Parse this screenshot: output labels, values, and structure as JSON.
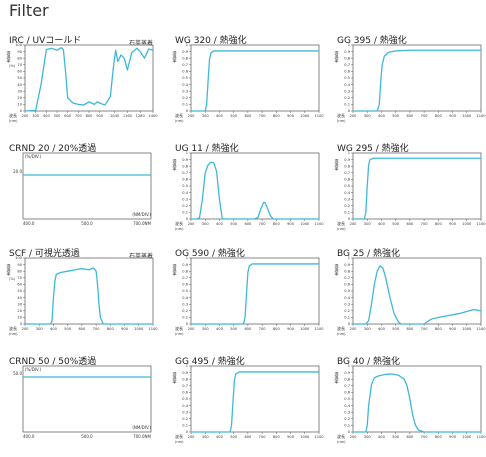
{
  "page": {
    "title": "Filter"
  },
  "colors": {
    "curve": "#3fb8d8",
    "axis": "#555555",
    "text": "#333333"
  },
  "chart_data": [
    {
      "type": "line",
      "title": "IRC / UVコールド",
      "note": "石英蒸着",
      "xlabel": "波長",
      "xunit": "(nm)",
      "ylabel": "透過率",
      "yunit": "(%)",
      "xlim": [
        200,
        1400
      ],
      "ylim": [
        0,
        100
      ],
      "xticks": [
        200,
        300,
        400,
        500,
        600,
        700,
        800,
        900,
        1040,
        1160,
        1280,
        1400
      ],
      "yticks": [
        0,
        10,
        20,
        30,
        40,
        50,
        60,
        70,
        80,
        90,
        100
      ],
      "grid": false,
      "series": [
        {
          "x": [
            200,
            300,
            350,
            400,
            450,
            500,
            540,
            560,
            580,
            600,
            650,
            700,
            750,
            800,
            850,
            880,
            900,
            950,
            1000,
            1030,
            1050,
            1070,
            1100,
            1130,
            1160,
            1200,
            1250,
            1280,
            1320,
            1360,
            1400
          ],
          "y": [
            0,
            1,
            40,
            93,
            95,
            92,
            96,
            93,
            60,
            20,
            12,
            10,
            9,
            14,
            10,
            14,
            12,
            9,
            22,
            68,
            92,
            75,
            85,
            80,
            62,
            88,
            95,
            90,
            80,
            94,
            92
          ]
        }
      ]
    },
    {
      "type": "line",
      "title": "WG 320 / 熱強化",
      "xlabel": "波長",
      "xunit": "(nm)",
      "ylabel": "透過率",
      "yunit": "",
      "xlim": [
        200,
        1100
      ],
      "ylim": [
        0,
        1.0
      ],
      "xticks": [
        200,
        300,
        400,
        500,
        600,
        700,
        800,
        900,
        1000,
        1100
      ],
      "yticks": [
        0,
        0.1,
        0.2,
        0.3,
        0.4,
        0.5,
        0.6,
        0.7,
        0.8,
        0.9,
        1.0
      ],
      "grid": false,
      "series": [
        {
          "x": [
            200,
            300,
            310,
            320,
            330,
            340,
            360,
            400,
            500,
            700,
            900,
            1100
          ],
          "y": [
            0,
            0,
            0.1,
            0.45,
            0.78,
            0.88,
            0.91,
            0.91,
            0.91,
            0.91,
            0.91,
            0.91
          ]
        }
      ]
    },
    {
      "type": "line",
      "title": "GG 395 / 熱強化",
      "xlabel": "波長",
      "xunit": "(nm)",
      "ylabel": "透過率",
      "yunit": "",
      "xlim": [
        200,
        1100
      ],
      "ylim": [
        0,
        1.0
      ],
      "xticks": [
        200,
        300,
        400,
        500,
        600,
        700,
        800,
        900,
        1000,
        1100
      ],
      "yticks": [
        0,
        0.1,
        0.2,
        0.3,
        0.4,
        0.5,
        0.6,
        0.7,
        0.8,
        0.9,
        1.0
      ],
      "grid": false,
      "series": [
        {
          "x": [
            200,
            370,
            385,
            395,
            405,
            420,
            450,
            500,
            600,
            800,
            1000,
            1100
          ],
          "y": [
            0,
            0,
            0.1,
            0.45,
            0.7,
            0.83,
            0.89,
            0.91,
            0.92,
            0.92,
            0.92,
            0.92
          ]
        }
      ]
    },
    {
      "type": "line",
      "title": "CRND 20 / 20%透過",
      "xlabel": "(NM/DIV.)",
      "ylabel": "(%/DIV.)",
      "xlim": [
        400,
        700
      ],
      "ylim": [
        0,
        30
      ],
      "xticklabels": [
        "400.0",
        "500.0",
        "700.0NM"
      ],
      "yticklabels": [
        "20.0"
      ],
      "grid": false,
      "series": [
        {
          "x": [
            400,
            500,
            600,
            700
          ],
          "y": [
            20,
            20,
            20,
            20
          ]
        }
      ]
    },
    {
      "type": "line",
      "title": "UG 11 / 熱強化",
      "xlabel": "波長",
      "xunit": "(nm)",
      "ylabel": "透過率",
      "yunit": "",
      "xlim": [
        200,
        1100
      ],
      "ylim": [
        0,
        1.0
      ],
      "xticks": [
        200,
        300,
        400,
        500,
        600,
        700,
        800,
        900,
        1000,
        1100
      ],
      "yticks": [
        0,
        0.1,
        0.2,
        0.3,
        0.4,
        0.5,
        0.6,
        0.7,
        0.8,
        0.9,
        1.0
      ],
      "grid": false,
      "series": [
        {
          "x": [
            200,
            240,
            260,
            280,
            300,
            320,
            340,
            360,
            380,
            400,
            420,
            640,
            670,
            690,
            710,
            720,
            740,
            760,
            780,
            800,
            1100
          ],
          "y": [
            0,
            0,
            0.02,
            0.3,
            0.7,
            0.82,
            0.86,
            0.85,
            0.72,
            0.3,
            0,
            0,
            0.02,
            0.15,
            0.25,
            0.25,
            0.15,
            0.04,
            0,
            0,
            0
          ]
        }
      ]
    },
    {
      "type": "line",
      "title": "WG 295 / 熱強化",
      "xlabel": "波長",
      "xunit": "(nm)",
      "ylabel": "透過率",
      "yunit": "",
      "xlim": [
        200,
        1100
      ],
      "ylim": [
        0,
        1.0
      ],
      "xticks": [
        200,
        300,
        400,
        500,
        600,
        700,
        800,
        900,
        1000,
        1100
      ],
      "yticks": [
        0,
        0.1,
        0.2,
        0.3,
        0.4,
        0.5,
        0.6,
        0.7,
        0.8,
        0.9,
        1.0
      ],
      "grid": false,
      "series": [
        {
          "x": [
            200,
            280,
            290,
            300,
            310,
            320,
            340,
            400,
            600,
            800,
            1100
          ],
          "y": [
            0,
            0,
            0.1,
            0.5,
            0.82,
            0.9,
            0.92,
            0.92,
            0.92,
            0.92,
            0.92
          ]
        }
      ]
    },
    {
      "type": "line",
      "title": "SCF / 可視光透過",
      "note": "石英蒸着",
      "xlabel": "波長",
      "xunit": "(nm)",
      "ylabel": "透過率",
      "yunit": "(%)",
      "xlim": [
        200,
        1100
      ],
      "ylim": [
        0,
        100
      ],
      "xticks": [
        200,
        300,
        400,
        500,
        600,
        700,
        800,
        900,
        1000,
        1100
      ],
      "yticks": [
        0,
        10,
        20,
        30,
        40,
        50,
        60,
        70,
        80,
        90,
        100
      ],
      "grid": false,
      "series": [
        {
          "x": [
            200,
            380,
            390,
            400,
            410,
            420,
            450,
            500,
            550,
            600,
            650,
            680,
            700,
            710,
            720,
            730,
            750,
            800,
            1100
          ],
          "y": [
            0,
            0,
            5,
            40,
            65,
            75,
            78,
            80,
            82,
            84,
            82,
            85,
            80,
            60,
            30,
            10,
            0,
            0,
            0
          ]
        }
      ]
    },
    {
      "type": "line",
      "title": "OG 590 / 熱強化",
      "xlabel": "波長",
      "xunit": "(nm)",
      "ylabel": "透過率",
      "yunit": "",
      "xlim": [
        200,
        1100
      ],
      "ylim": [
        0,
        1.0
      ],
      "xticks": [
        200,
        300,
        400,
        500,
        600,
        700,
        800,
        900,
        1000,
        1100
      ],
      "yticks": [
        0,
        0.1,
        0.2,
        0.3,
        0.4,
        0.5,
        0.6,
        0.7,
        0.8,
        0.9,
        1.0
      ],
      "grid": false,
      "series": [
        {
          "x": [
            200,
            570,
            580,
            590,
            600,
            610,
            630,
            700,
            900,
            1100
          ],
          "y": [
            0,
            0,
            0.1,
            0.45,
            0.78,
            0.88,
            0.91,
            0.91,
            0.91,
            0.91
          ]
        }
      ]
    },
    {
      "type": "line",
      "title": "BG 25 / 熱強化",
      "xlabel": "波長",
      "xunit": "(nm)",
      "ylabel": "透過率",
      "yunit": "",
      "xlim": [
        200,
        1100
      ],
      "ylim": [
        0,
        1.0
      ],
      "xticks": [
        200,
        300,
        400,
        500,
        600,
        700,
        800,
        900,
        1000,
        1100
      ],
      "yticks": [
        0,
        0.1,
        0.2,
        0.3,
        0.4,
        0.5,
        0.6,
        0.7,
        0.8,
        0.9,
        1.0
      ],
      "grid": false,
      "series": [
        {
          "x": [
            200,
            290,
            310,
            330,
            350,
            370,
            390,
            410,
            430,
            460,
            490,
            520,
            540,
            700,
            720,
            740,
            760,
            800,
            850,
            900,
            950,
            1000,
            1050,
            1100
          ],
          "y": [
            0,
            0,
            0.05,
            0.3,
            0.6,
            0.8,
            0.88,
            0.85,
            0.7,
            0.4,
            0.15,
            0.03,
            0,
            0,
            0.03,
            0.06,
            0.08,
            0.1,
            0.12,
            0.14,
            0.16,
            0.19,
            0.22,
            0.2
          ]
        }
      ]
    },
    {
      "type": "line",
      "title": "CRND 50 / 50%透過",
      "xlabel": "(NM/DIV.)",
      "ylabel": "(%/DIV.)",
      "xlim": [
        400,
        700
      ],
      "ylim": [
        0,
        60
      ],
      "xticklabels": [
        "400.0",
        "500.0",
        "700.0NM"
      ],
      "yticklabels": [
        "50.0"
      ],
      "grid": false,
      "series": [
        {
          "x": [
            400,
            500,
            600,
            700
          ],
          "y": [
            50,
            50,
            50,
            50
          ]
        }
      ]
    },
    {
      "type": "line",
      "title": "GG 495 / 熱強化",
      "xlabel": "波長",
      "xunit": "(nm)",
      "ylabel": "透過率",
      "yunit": "",
      "xlim": [
        200,
        1100
      ],
      "ylim": [
        0,
        1.0
      ],
      "xticks": [
        200,
        300,
        400,
        500,
        600,
        700,
        800,
        900,
        1000,
        1100
      ],
      "yticks": [
        0,
        0.1,
        0.2,
        0.3,
        0.4,
        0.5,
        0.6,
        0.7,
        0.8,
        0.9,
        1.0
      ],
      "grid": false,
      "series": [
        {
          "x": [
            200,
            475,
            485,
            495,
            505,
            515,
            540,
            600,
            800,
            1100
          ],
          "y": [
            0,
            0,
            0.1,
            0.45,
            0.78,
            0.88,
            0.91,
            0.91,
            0.91,
            0.91
          ]
        }
      ]
    },
    {
      "type": "line",
      "title": "BG 40 / 熱強化",
      "xlabel": "波長",
      "xunit": "(nm)",
      "ylabel": "透過率",
      "yunit": "",
      "xlim": [
        200,
        1100
      ],
      "ylim": [
        0,
        1.0
      ],
      "xticks": [
        200,
        300,
        400,
        500,
        600,
        700,
        800,
        900,
        1000,
        1100
      ],
      "yticks": [
        0,
        0.1,
        0.2,
        0.3,
        0.4,
        0.5,
        0.6,
        0.7,
        0.8,
        0.9,
        1.0
      ],
      "grid": false,
      "series": [
        {
          "x": [
            200,
            290,
            300,
            310,
            330,
            350,
            380,
            420,
            470,
            520,
            560,
            580,
            600,
            620,
            640,
            660,
            700,
            1100
          ],
          "y": [
            0,
            0,
            0.1,
            0.4,
            0.72,
            0.82,
            0.85,
            0.87,
            0.88,
            0.86,
            0.8,
            0.7,
            0.5,
            0.25,
            0.1,
            0.03,
            0,
            0
          ]
        }
      ]
    }
  ]
}
